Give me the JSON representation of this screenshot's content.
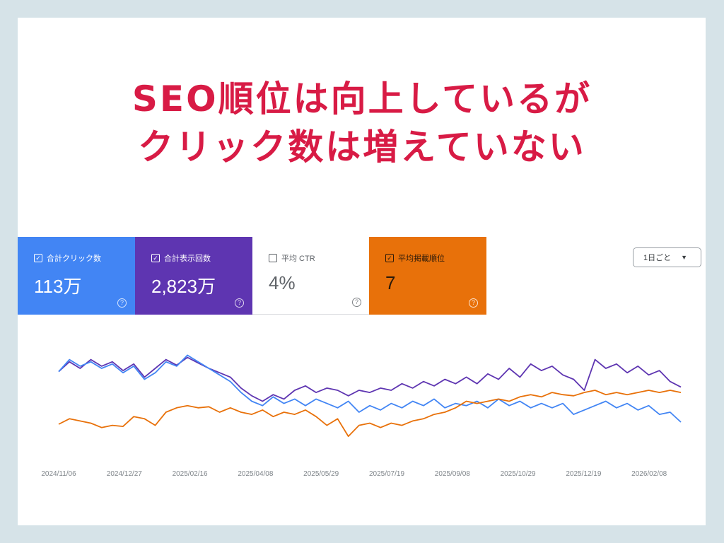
{
  "headline": {
    "line1": "SEO順位は向上しているが",
    "line2": "クリック数は増えていない"
  },
  "metrics": [
    {
      "label": "合計クリック数",
      "value": "113万",
      "checked": true,
      "color": "#4285f4"
    },
    {
      "label": "合計表示回数",
      "value": "2,823万",
      "checked": true,
      "color": "#5e35b1"
    },
    {
      "label": "平均 CTR",
      "value": "4%",
      "checked": false,
      "color": "#ffffff"
    },
    {
      "label": "平均掲載順位",
      "value": "7",
      "checked": true,
      "color": "#e8710a"
    }
  ],
  "granularity": "1日ごと",
  "chart_data": {
    "type": "line",
    "title": "",
    "xlabel": "",
    "ylabel": "",
    "x_tick_labels": [
      "2024/11/06",
      "2024/12/27",
      "2025/02/16",
      "2025/04/08",
      "2025/05/29",
      "2025/07/19",
      "2025/09/08",
      "2025/10/29",
      "2025/12/19",
      "2026/02/08"
    ],
    "ylim": [
      0,
      100
    ],
    "y_note": "relative scale (no axis values shown)",
    "series": [
      {
        "name": "合計表示回数",
        "color": "#5e35b1",
        "values": [
          77,
          86,
          80,
          88,
          82,
          86,
          78,
          84,
          72,
          80,
          88,
          83,
          90,
          85,
          80,
          76,
          72,
          62,
          55,
          50,
          56,
          52,
          60,
          64,
          58,
          62,
          60,
          55,
          60,
          58,
          62,
          60,
          66,
          62,
          68,
          64,
          70,
          66,
          72,
          66,
          75,
          70,
          80,
          72,
          84,
          78,
          82,
          74,
          70,
          60,
          88,
          80,
          84,
          76,
          82,
          74,
          78,
          68,
          63
        ]
      },
      {
        "name": "合計クリック数",
        "color": "#4285f4",
        "values": [
          77,
          88,
          82,
          86,
          80,
          84,
          76,
          82,
          70,
          76,
          86,
          82,
          92,
          86,
          80,
          74,
          68,
          58,
          50,
          46,
          54,
          48,
          52,
          46,
          52,
          48,
          44,
          50,
          40,
          46,
          42,
          48,
          44,
          50,
          46,
          52,
          44,
          48,
          46,
          50,
          44,
          52,
          46,
          50,
          44,
          48,
          44,
          48,
          38,
          42,
          46,
          50,
          44,
          48,
          42,
          46,
          38,
          40,
          31
        ]
      },
      {
        "name": "平均掲載順位",
        "color": "#e8710a",
        "values": [
          29,
          34,
          32,
          30,
          26,
          28,
          27,
          36,
          34,
          28,
          40,
          44,
          46,
          44,
          45,
          40,
          44,
          40,
          38,
          42,
          36,
          40,
          38,
          42,
          36,
          28,
          34,
          18,
          28,
          30,
          26,
          30,
          28,
          32,
          34,
          38,
          40,
          44,
          50,
          48,
          50,
          52,
          50,
          54,
          56,
          54,
          58,
          56,
          55,
          58,
          60,
          56,
          58,
          56,
          58,
          60,
          58,
          60,
          58
        ]
      }
    ]
  }
}
